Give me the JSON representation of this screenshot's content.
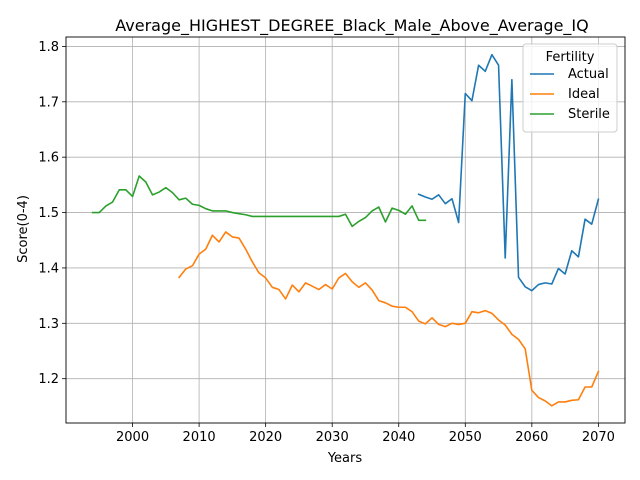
{
  "chart_data": {
    "type": "line",
    "title": "Average_HIGHEST_DEGREE_Black_Male_Above_Average_IQ",
    "xlabel": "Years",
    "ylabel": "Score(0-4)",
    "xlim": [
      1990,
      2074
    ],
    "ylim": [
      1.12,
      1.817
    ],
    "xticks": [
      2000,
      2010,
      2020,
      2030,
      2040,
      2050,
      2060,
      2070
    ],
    "yticks": [
      1.2,
      1.3,
      1.4,
      1.5,
      1.6,
      1.7,
      1.8
    ],
    "grid": true,
    "legend": {
      "title": "Fertility",
      "position": "top-right"
    },
    "series": [
      {
        "name": "Actual",
        "color": "#1f77b4",
        "points": [
          [
            2043,
            1.533
          ],
          [
            2044,
            1.528
          ],
          [
            2045,
            1.524
          ],
          [
            2046,
            1.532
          ],
          [
            2047,
            1.516
          ],
          [
            2048,
            1.525
          ],
          [
            2049,
            1.482
          ],
          [
            2050,
            1.715
          ],
          [
            2051,
            1.702
          ],
          [
            2052,
            1.766
          ],
          [
            2053,
            1.755
          ],
          [
            2054,
            1.785
          ],
          [
            2055,
            1.766
          ],
          [
            2056,
            1.418
          ],
          [
            2057,
            1.74
          ],
          [
            2058,
            1.383
          ],
          [
            2059,
            1.366
          ],
          [
            2060,
            1.359
          ],
          [
            2061,
            1.37
          ],
          [
            2062,
            1.373
          ],
          [
            2063,
            1.371
          ],
          [
            2064,
            1.399
          ],
          [
            2065,
            1.389
          ],
          [
            2066,
            1.431
          ],
          [
            2067,
            1.42
          ],
          [
            2068,
            1.488
          ],
          [
            2069,
            1.479
          ],
          [
            2070,
            1.524
          ]
        ]
      },
      {
        "name": "Ideal",
        "color": "#ff7f0e",
        "points": [
          [
            2007,
            1.383
          ],
          [
            2008,
            1.398
          ],
          [
            2009,
            1.404
          ],
          [
            2010,
            1.425
          ],
          [
            2011,
            1.434
          ],
          [
            2012,
            1.459
          ],
          [
            2013,
            1.447
          ],
          [
            2014,
            1.465
          ],
          [
            2015,
            1.456
          ],
          [
            2016,
            1.454
          ],
          [
            2017,
            1.434
          ],
          [
            2018,
            1.411
          ],
          [
            2019,
            1.391
          ],
          [
            2020,
            1.382
          ],
          [
            2021,
            1.365
          ],
          [
            2022,
            1.361
          ],
          [
            2023,
            1.344
          ],
          [
            2024,
            1.369
          ],
          [
            2025,
            1.357
          ],
          [
            2026,
            1.373
          ],
          [
            2027,
            1.367
          ],
          [
            2028,
            1.361
          ],
          [
            2029,
            1.37
          ],
          [
            2030,
            1.362
          ],
          [
            2031,
            1.382
          ],
          [
            2032,
            1.39
          ],
          [
            2033,
            1.375
          ],
          [
            2034,
            1.365
          ],
          [
            2035,
            1.373
          ],
          [
            2036,
            1.36
          ],
          [
            2037,
            1.341
          ],
          [
            2038,
            1.337
          ],
          [
            2039,
            1.331
          ],
          [
            2040,
            1.329
          ],
          [
            2041,
            1.329
          ],
          [
            2042,
            1.321
          ],
          [
            2043,
            1.304
          ],
          [
            2044,
            1.299
          ],
          [
            2045,
            1.31
          ],
          [
            2046,
            1.298
          ],
          [
            2047,
            1.294
          ],
          [
            2048,
            1.3
          ],
          [
            2049,
            1.298
          ],
          [
            2050,
            1.3
          ],
          [
            2051,
            1.321
          ],
          [
            2052,
            1.319
          ],
          [
            2053,
            1.323
          ],
          [
            2054,
            1.318
          ],
          [
            2055,
            1.306
          ],
          [
            2056,
            1.297
          ],
          [
            2057,
            1.28
          ],
          [
            2058,
            1.271
          ],
          [
            2059,
            1.254
          ],
          [
            2060,
            1.179
          ],
          [
            2061,
            1.166
          ],
          [
            2062,
            1.16
          ],
          [
            2063,
            1.151
          ],
          [
            2064,
            1.158
          ],
          [
            2065,
            1.158
          ],
          [
            2066,
            1.161
          ],
          [
            2067,
            1.162
          ],
          [
            2068,
            1.185
          ],
          [
            2069,
            1.185
          ],
          [
            2070,
            1.213
          ]
        ]
      },
      {
        "name": "Sterile",
        "color": "#2ca02c",
        "points": [
          [
            1994,
            1.5
          ],
          [
            1995,
            1.5
          ],
          [
            1996,
            1.512
          ],
          [
            1997,
            1.519
          ],
          [
            1998,
            1.541
          ],
          [
            1999,
            1.541
          ],
          [
            2000,
            1.529
          ],
          [
            2001,
            1.566
          ],
          [
            2002,
            1.555
          ],
          [
            2003,
            1.532
          ],
          [
            2004,
            1.537
          ],
          [
            2005,
            1.545
          ],
          [
            2006,
            1.536
          ],
          [
            2007,
            1.523
          ],
          [
            2008,
            1.526
          ],
          [
            2009,
            1.515
          ],
          [
            2010,
            1.513
          ],
          [
            2011,
            1.507
          ],
          [
            2012,
            1.503
          ],
          [
            2013,
            1.503
          ],
          [
            2014,
            1.503
          ],
          [
            2015,
            1.5
          ],
          [
            2016,
            1.498
          ],
          [
            2017,
            1.496
          ],
          [
            2018,
            1.493
          ],
          [
            2019,
            1.493
          ],
          [
            2020,
            1.493
          ],
          [
            2021,
            1.493
          ],
          [
            2022,
            1.493
          ],
          [
            2023,
            1.493
          ],
          [
            2024,
            1.493
          ],
          [
            2025,
            1.493
          ],
          [
            2026,
            1.493
          ],
          [
            2027,
            1.493
          ],
          [
            2028,
            1.493
          ],
          [
            2029,
            1.493
          ],
          [
            2030,
            1.493
          ],
          [
            2031,
            1.493
          ],
          [
            2032,
            1.497
          ],
          [
            2033,
            1.475
          ],
          [
            2034,
            1.484
          ],
          [
            2035,
            1.491
          ],
          [
            2036,
            1.503
          ],
          [
            2037,
            1.51
          ],
          [
            2038,
            1.483
          ],
          [
            2039,
            1.508
          ],
          [
            2040,
            1.504
          ],
          [
            2041,
            1.497
          ],
          [
            2042,
            1.512
          ],
          [
            2043,
            1.486
          ],
          [
            2044,
            1.486
          ]
        ]
      }
    ]
  }
}
